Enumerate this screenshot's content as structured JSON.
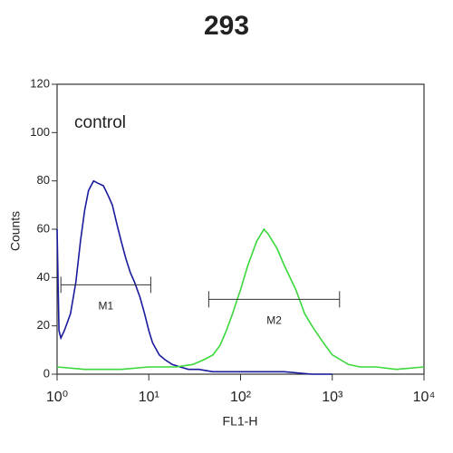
{
  "chart_data": {
    "type": "line",
    "title": "293",
    "xlabel": "FL1-H",
    "ylabel": "Counts",
    "xscale": "log",
    "xlim": [
      1,
      10000
    ],
    "xticks": [
      {
        "value": 1,
        "label": "10⁰"
      },
      {
        "value": 10,
        "label": "10¹"
      },
      {
        "value": 100,
        "label": "10²"
      },
      {
        "value": 1000,
        "label": "10³"
      },
      {
        "value": 10000,
        "label": "10⁴"
      }
    ],
    "ylim": [
      0,
      120
    ],
    "yticks": [
      0,
      20,
      40,
      60,
      80,
      100,
      120
    ],
    "series": [
      {
        "name": "control",
        "color": "#1a1a9c",
        "x": [
          1.0,
          1.05,
          1.1,
          1.2,
          1.4,
          1.6,
          1.8,
          2.0,
          2.2,
          2.5,
          2.8,
          3.2,
          3.6,
          4,
          4.5,
          5,
          5.6,
          6.3,
          7,
          8,
          9,
          10,
          11,
          13,
          15,
          18,
          22,
          27,
          35,
          50,
          80,
          150,
          300,
          600,
          1000
        ],
        "values": [
          60,
          18,
          15,
          18,
          25,
          38,
          55,
          68,
          76,
          80,
          79,
          78,
          74,
          70,
          62,
          55,
          48,
          42,
          38,
          32,
          25,
          18,
          13,
          8,
          6,
          4,
          3,
          2,
          2,
          1,
          1,
          1,
          1,
          0,
          0
        ]
      },
      {
        "color": "#3ad83a",
        "x": [
          1,
          2,
          5,
          10,
          20,
          30,
          40,
          50,
          60,
          70,
          80,
          100,
          120,
          150,
          180,
          200,
          250,
          300,
          400,
          500,
          600,
          800,
          1000,
          1500,
          2000,
          3000,
          5000,
          10000
        ],
        "values": [
          3,
          2,
          2,
          3,
          3,
          4,
          6,
          8,
          12,
          18,
          24,
          35,
          45,
          55,
          60,
          58,
          52,
          45,
          35,
          25,
          20,
          13,
          8,
          4,
          3,
          3,
          2,
          3
        ]
      }
    ],
    "gates": [
      {
        "label": "M1",
        "x": [
          1.1,
          10.5
        ],
        "y": 37
      },
      {
        "label": "M2",
        "x": [
          45,
          1200
        ],
        "y": 31
      }
    ]
  }
}
